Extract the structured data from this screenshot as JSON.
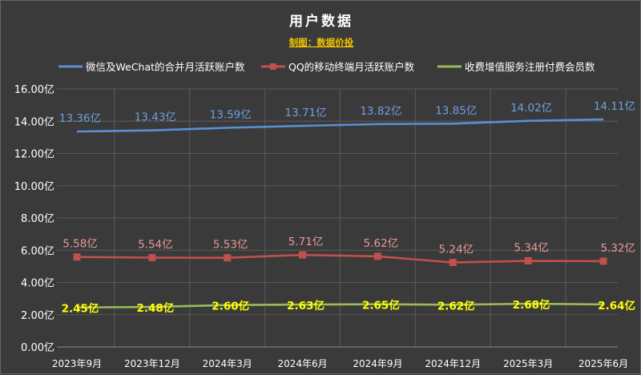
{
  "chart_data": {
    "type": "line",
    "title": "用户数据",
    "subtitle": "制图：数据价投",
    "categories": [
      "2023年9月",
      "2023年12月",
      "2024年3月",
      "2024年6月",
      "2024年9月",
      "2024年12月",
      "2025年3月",
      "2025年6月"
    ],
    "y_ticks": [
      "0.00亿",
      "2.00亿",
      "4.00亿",
      "6.00亿",
      "8.00亿",
      "10.00亿",
      "12.00亿",
      "14.00亿",
      "16.00亿"
    ],
    "ylim": [
      0,
      16
    ],
    "grid": true,
    "legend_position": "top",
    "series": [
      {
        "name": "微信及WeChat的合并月活跃账户数",
        "color": "#5b8fd6",
        "label_color": "#6f9fe0",
        "marker": "none",
        "values": [
          13.36,
          13.43,
          13.59,
          13.71,
          13.82,
          13.85,
          14.02,
          14.11
        ],
        "labels": [
          "13.36亿",
          "13.43亿",
          "13.59亿",
          "13.71亿",
          "13.82亿",
          "13.85亿",
          "14.02亿",
          "14.11亿"
        ]
      },
      {
        "name": "QQ的移动终端月活跃账户数",
        "color": "#c0504d",
        "label_color": "#e89a98",
        "marker": "square",
        "values": [
          5.58,
          5.54,
          5.53,
          5.71,
          5.62,
          5.24,
          5.34,
          5.32
        ],
        "labels": [
          "5.58亿",
          "5.54亿",
          "5.53亿",
          "5.71亿",
          "5.62亿",
          "5.24亿",
          "5.34亿",
          "5.32亿"
        ]
      },
      {
        "name": "收费增值服务注册付费会员数",
        "color": "#9bbb59",
        "label_color": "#ffff00",
        "marker": "none",
        "values": [
          2.45,
          2.48,
          2.6,
          2.63,
          2.65,
          2.62,
          2.68,
          2.64
        ],
        "labels": [
          "2.45亿",
          "2.48亿",
          "2.60亿",
          "2.63亿",
          "2.65亿",
          "2.62亿",
          "2.68亿",
          "2.64亿"
        ]
      }
    ]
  }
}
